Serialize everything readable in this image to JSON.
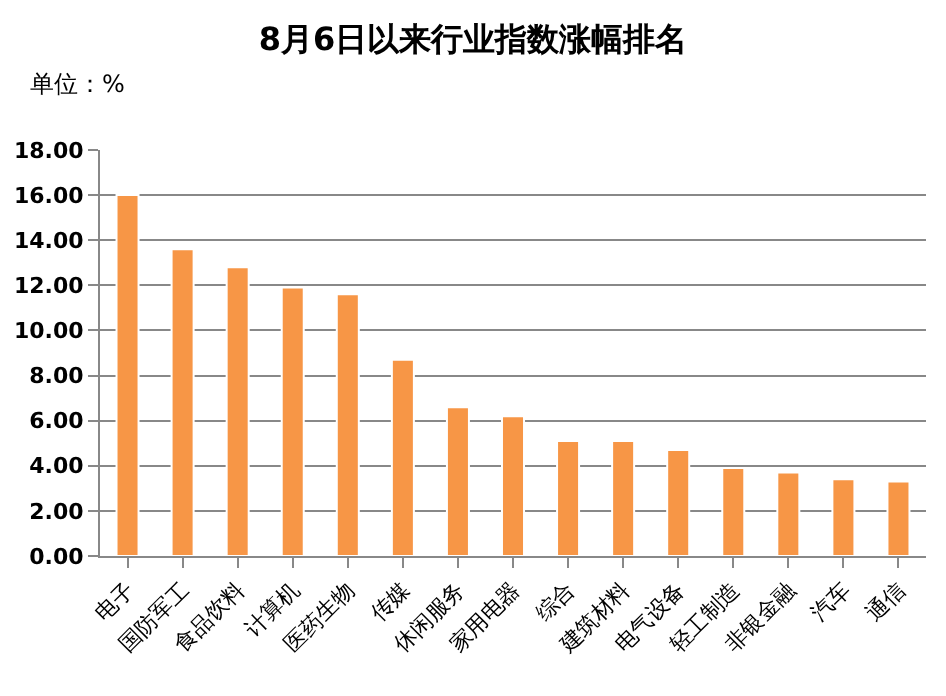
{
  "chart_data": {
    "type": "bar",
    "title": "8月6日以来行业指数涨幅排名",
    "ylabel": "单位：%",
    "categories": [
      "电子",
      "国防军工",
      "食品饮料",
      "计算机",
      "医药生物",
      "传媒",
      "休闲服务",
      "家用电器",
      "综合",
      "建筑材料",
      "电气设备",
      "轻工制造",
      "非银金融",
      "汽车",
      "通信"
    ],
    "values": [
      16.0,
      13.6,
      12.8,
      11.9,
      11.6,
      8.7,
      6.6,
      6.2,
      5.1,
      5.1,
      4.7,
      3.9,
      3.7,
      3.4,
      3.3
    ],
    "color": "#f79646",
    "ylim": [
      0,
      18
    ],
    "yticks": [
      {
        "value": 0,
        "label": "0.00"
      },
      {
        "value": 2,
        "label": "2.00"
      },
      {
        "value": 4,
        "label": "4.00"
      },
      {
        "value": 6,
        "label": "6.00"
      },
      {
        "value": 8,
        "label": "8.00"
      },
      {
        "value": 10,
        "label": "10.00"
      },
      {
        "value": 12,
        "label": "12.00"
      },
      {
        "value": 14,
        "label": "14.00"
      },
      {
        "value": 16,
        "label": "16.00"
      },
      {
        "value": 18,
        "label": "18.00"
      }
    ],
    "grid": "y",
    "legend": false
  }
}
